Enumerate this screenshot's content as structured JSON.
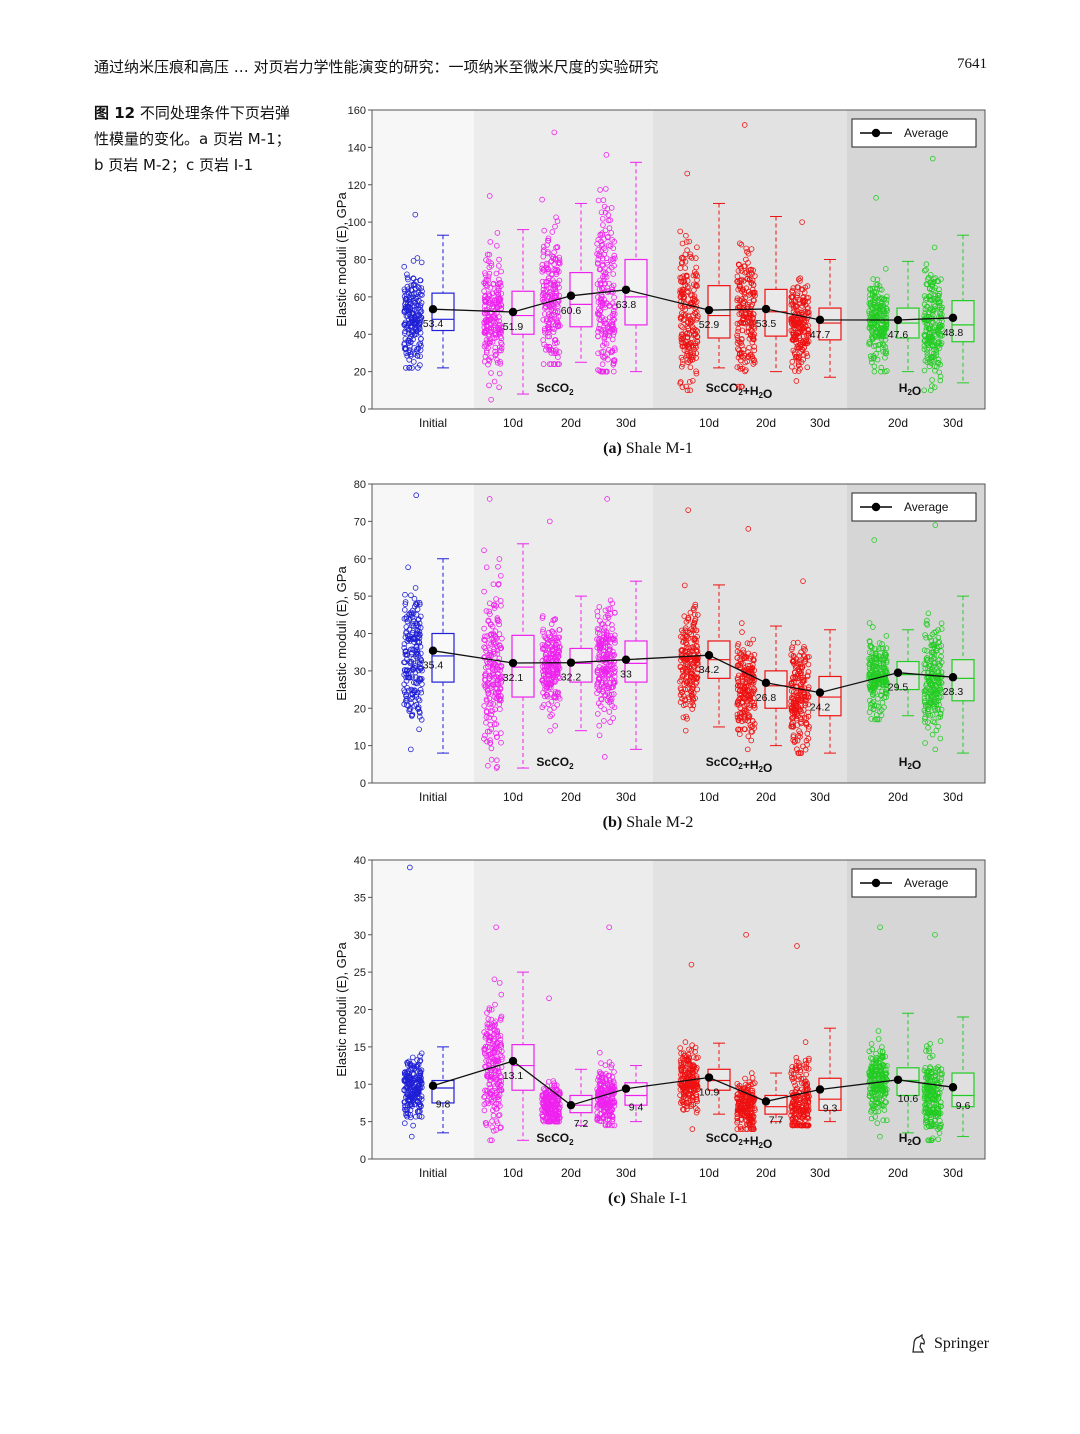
{
  "header": {
    "title": "通过纳米压痕和高压 … 对页岩力学性能演变的研究：一项纳米至微米尺度的实验研究",
    "page_number": "7641"
  },
  "caption": {
    "label": "图 12",
    "text": "不同处理条件下页岩弹性模量的变化。a 页岩 M-1；b 页岩 M-2；c 页岩 I-1"
  },
  "footer": {
    "publisher": "Springer",
    "publisher_icon": "springer-horse-icon"
  },
  "colors": {
    "initial": "#1f1fd6",
    "scco2": "#ee22ee",
    "scco2_h2o": "#ee1111",
    "h2o": "#22cc22",
    "average": "#000000"
  },
  "chart_data": [
    {
      "type": "box-scatter",
      "panel_label": "(a)",
      "panel_name": "Shale M-1",
      "ylabel": "Elastic moduli (E), GPa",
      "ylim": [
        0,
        160
      ],
      "yticks": [
        0,
        20,
        40,
        60,
        80,
        100,
        120,
        140,
        160
      ],
      "legend": "Average",
      "legend_position": "top-right",
      "group_labels": [
        "ScCO2",
        "ScCO2+H2O",
        "H2O"
      ],
      "categories": [
        "Initial",
        "10d",
        "20d",
        "30d",
        "10d",
        "20d",
        "30d",
        "20d",
        "30d"
      ],
      "groups": [
        "initial",
        "scco2",
        "scco2",
        "scco2",
        "scco2_h2o",
        "scco2_h2o",
        "scco2_h2o",
        "h2o",
        "h2o"
      ],
      "averages": [
        53.4,
        51.9,
        60.6,
        63.8,
        52.9,
        53.5,
        47.7,
        47.6,
        48.8
      ],
      "average_labels": [
        "53.4",
        "51.9",
        "60.6",
        "63.8",
        "52.9",
        "53.5",
        "47.7",
        "47.6",
        "48.8"
      ],
      "boxes": [
        {
          "whislo": 22,
          "q1": 42,
          "med": 48,
          "q3": 62,
          "whishi": 93
        },
        {
          "whislo": 8,
          "q1": 40,
          "med": 50,
          "q3": 63,
          "whishi": 96
        },
        {
          "whislo": 25,
          "q1": 44,
          "med": 56,
          "q3": 73,
          "whishi": 110
        },
        {
          "whislo": 20,
          "q1": 45,
          "med": 60,
          "q3": 80,
          "whishi": 132
        },
        {
          "whislo": 22,
          "q1": 38,
          "med": 50,
          "q3": 66,
          "whishi": 110
        },
        {
          "whislo": 20,
          "q1": 39,
          "med": 52,
          "q3": 64,
          "whishi": 103
        },
        {
          "whislo": 17,
          "q1": 37,
          "med": 46,
          "q3": 54,
          "whishi": 80
        },
        {
          "whislo": 20,
          "q1": 38,
          "med": 46,
          "q3": 54,
          "whishi": 79
        },
        {
          "whislo": 14,
          "q1": 36,
          "med": 45,
          "q3": 58,
          "whishi": 93
        }
      ],
      "scatter_ranges": [
        [
          22,
          104
        ],
        [
          5,
          114
        ],
        [
          24,
          148
        ],
        [
          20,
          136
        ],
        [
          10,
          126
        ],
        [
          12,
          152
        ],
        [
          15,
          100
        ],
        [
          20,
          113
        ],
        [
          10,
          134
        ]
      ]
    },
    {
      "type": "box-scatter",
      "panel_label": "(b)",
      "panel_name": "Shale M-2",
      "ylabel": "Elastic moduli (E), GPa",
      "ylim": [
        0,
        80
      ],
      "yticks": [
        0,
        10,
        20,
        30,
        40,
        50,
        60,
        70,
        80
      ],
      "legend": "Average",
      "legend_position": "top-right",
      "group_labels": [
        "ScCO2",
        "ScCO2+H2O",
        "H2O"
      ],
      "categories": [
        "Initial",
        "10d",
        "20d",
        "30d",
        "10d",
        "20d",
        "30d",
        "20d",
        "30d"
      ],
      "groups": [
        "initial",
        "scco2",
        "scco2",
        "scco2",
        "scco2_h2o",
        "scco2_h2o",
        "scco2_h2o",
        "h2o",
        "h2o"
      ],
      "averages": [
        35.4,
        32.1,
        32.2,
        33.0,
        34.2,
        26.8,
        24.2,
        29.5,
        28.3
      ],
      "average_labels": [
        "35.4",
        "32.1",
        "32.2",
        "33",
        "34.2",
        "26.8",
        "24.2",
        "29.5",
        "28.3"
      ],
      "boxes": [
        {
          "whislo": 8,
          "q1": 27,
          "med": 34,
          "q3": 40,
          "whishi": 60
        },
        {
          "whislo": 4,
          "q1": 23,
          "med": 31,
          "q3": 39.5,
          "whishi": 64
        },
        {
          "whislo": 14,
          "q1": 27,
          "med": 32,
          "q3": 36,
          "whishi": 50
        },
        {
          "whislo": 9,
          "q1": 27,
          "med": 32,
          "q3": 38,
          "whishi": 54
        },
        {
          "whislo": 15,
          "q1": 28,
          "med": 33,
          "q3": 38,
          "whishi": 53
        },
        {
          "whislo": 10,
          "q1": 20,
          "med": 26,
          "q3": 30,
          "whishi": 42
        },
        {
          "whislo": 8,
          "q1": 18,
          "med": 23,
          "q3": 28.5,
          "whishi": 41
        },
        {
          "whislo": 18,
          "q1": 25,
          "med": 29,
          "q3": 32.5,
          "whishi": 41
        },
        {
          "whislo": 8,
          "q1": 22,
          "med": 28,
          "q3": 33,
          "whishi": 50
        }
      ],
      "scatter_ranges": [
        [
          9,
          77
        ],
        [
          4,
          76
        ],
        [
          14,
          70
        ],
        [
          7,
          76
        ],
        [
          14,
          73
        ],
        [
          9,
          68
        ],
        [
          8,
          54
        ],
        [
          17,
          65
        ],
        [
          9,
          69
        ]
      ]
    },
    {
      "type": "box-scatter",
      "panel_label": "(c)",
      "panel_name": "Shale I-1",
      "ylabel": "Elastic moduli (E), GPa",
      "ylim": [
        0,
        40
      ],
      "yticks": [
        0,
        5,
        10,
        15,
        20,
        25,
        30,
        35,
        40
      ],
      "legend": "Average",
      "legend_position": "top-right",
      "group_labels": [
        "ScCO2",
        "ScCO2+H2O",
        "H2O"
      ],
      "categories": [
        "Initial",
        "10d",
        "20d",
        "30d",
        "10d",
        "20d",
        "30d",
        "20d",
        "30d"
      ],
      "groups": [
        "initial",
        "scco2",
        "scco2",
        "scco2",
        "scco2_h2o",
        "scco2_h2o",
        "scco2_h2o",
        "h2o",
        "h2o"
      ],
      "averages": [
        9.8,
        13.1,
        7.2,
        9.4,
        10.9,
        7.7,
        9.3,
        10.6,
        9.6
      ],
      "average_labels": [
        "9.8",
        "13.1",
        "7.2",
        "9.4",
        "10.9",
        "7.7",
        "9.3",
        "10.6",
        "9.6"
      ],
      "boxes": [
        {
          "whislo": 3.5,
          "q1": 7.5,
          "med": 9.5,
          "q3": 10.5,
          "whishi": 15
        },
        {
          "whislo": 2.5,
          "q1": 9.2,
          "med": 12.5,
          "q3": 15.3,
          "whishi": 25
        },
        {
          "whislo": 4.5,
          "q1": 6.2,
          "med": 7.2,
          "q3": 8.5,
          "whishi": 12
        },
        {
          "whislo": 5,
          "q1": 7.2,
          "med": 8.5,
          "q3": 10.2,
          "whishi": 12.5
        },
        {
          "whislo": 6,
          "q1": 9.2,
          "med": 10.5,
          "q3": 12,
          "whishi": 15.5
        },
        {
          "whislo": 5,
          "q1": 6,
          "med": 7,
          "q3": 8.5,
          "whishi": 11.5
        },
        {
          "whislo": 5,
          "q1": 6.5,
          "med": 8,
          "q3": 10.8,
          "whishi": 17.5
        },
        {
          "whislo": 3.5,
          "q1": 8.5,
          "med": 10.5,
          "q3": 12.2,
          "whishi": 19.5
        },
        {
          "whislo": 3,
          "q1": 7,
          "med": 8.5,
          "q3": 11.5,
          "whishi": 19
        }
      ],
      "scatter_ranges": [
        [
          3,
          39
        ],
        [
          2.5,
          31
        ],
        [
          5,
          21.5
        ],
        [
          4.5,
          31
        ],
        [
          4,
          26
        ],
        [
          4,
          30
        ],
        [
          4.5,
          28.5
        ],
        [
          3,
          31
        ],
        [
          2.5,
          30
        ]
      ]
    }
  ]
}
